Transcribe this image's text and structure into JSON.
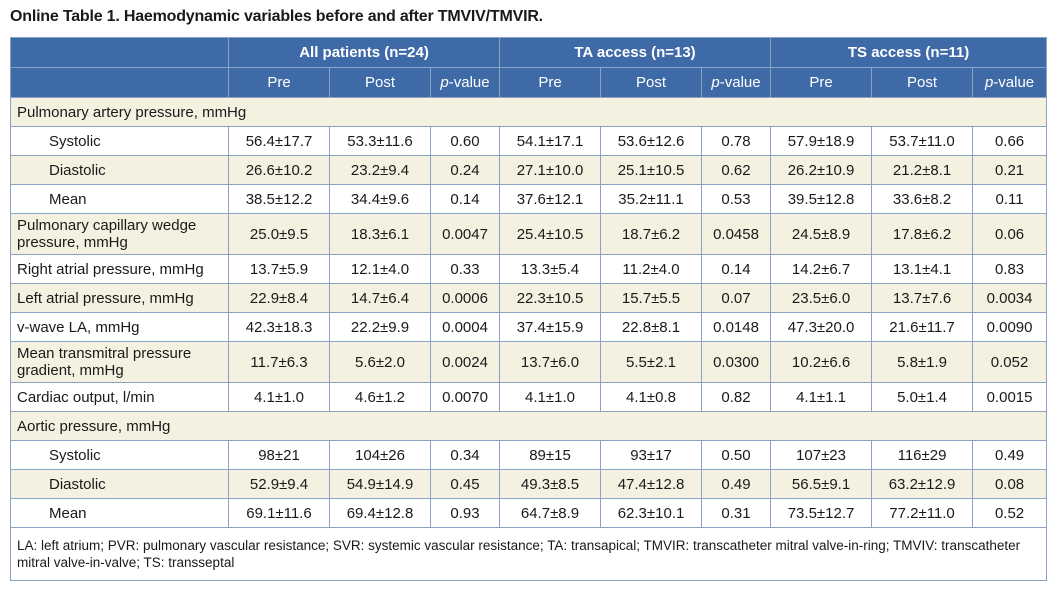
{
  "caption": "Online Table 1. Haemodynamic variables before and after TMVIV/TMVIR.",
  "groups": [
    "All patients (n=24)",
    "TA access (n=13)",
    "TS access (n=11)"
  ],
  "sub": {
    "pre": "Pre",
    "post": "Post",
    "p_italic": "p",
    "p_rest": "-value"
  },
  "rows": [
    {
      "type": "section",
      "label": "Pulmonary artery pressure, mmHg"
    },
    {
      "type": "indent",
      "label": "Systolic",
      "v": [
        "56.4±17.7",
        "53.3±11.6",
        "0.60",
        "54.1±17.1",
        "53.6±12.6",
        "0.78",
        "57.9±18.9",
        "53.7±11.0",
        "0.66"
      ]
    },
    {
      "type": "indent",
      "label": "Diastolic",
      "v": [
        "26.6±10.2",
        "23.2±9.4",
        "0.24",
        "27.1±10.0",
        "25.1±10.5",
        "0.62",
        "26.2±10.9",
        "21.2±8.1",
        "0.21"
      ]
    },
    {
      "type": "indent",
      "label": "Mean",
      "v": [
        "38.5±12.2",
        "34.4±9.6",
        "0.14",
        "37.6±12.1",
        "35.2±11.1",
        "0.53",
        "39.5±12.8",
        "33.6±8.2",
        "0.11"
      ]
    },
    {
      "type": "tall",
      "label": "Pulmonary capillary wedge pressure, mmHg",
      "v": [
        "25.0±9.5",
        "18.3±6.1",
        "0.0047",
        "25.4±10.5",
        "18.7±6.2",
        "0.0458",
        "24.5±8.9",
        "17.8±6.2",
        "0.06"
      ]
    },
    {
      "type": "row",
      "label": "Right atrial pressure, mmHg",
      "v": [
        "13.7±5.9",
        "12.1±4.0",
        "0.33",
        "13.3±5.4",
        "11.2±4.0",
        "0.14",
        "14.2±6.7",
        "13.1±4.1",
        "0.83"
      ]
    },
    {
      "type": "row",
      "label": "Left atrial pressure, mmHg",
      "v": [
        "22.9±8.4",
        "14.7±6.4",
        "0.0006",
        "22.3±10.5",
        "15.7±5.5",
        "0.07",
        "23.5±6.0",
        "13.7±7.6",
        "0.0034"
      ]
    },
    {
      "type": "row",
      "label": "v-wave LA, mmHg",
      "v": [
        "42.3±18.3",
        "22.2±9.9",
        "0.0004",
        "37.4±15.9",
        "22.8±8.1",
        "0.0148",
        "47.3±20.0",
        "21.6±11.7",
        "0.0090"
      ]
    },
    {
      "type": "tall",
      "label": "Mean transmitral pressure gradient, mmHg",
      "v": [
        "11.7±6.3",
        "5.6±2.0",
        "0.0024",
        "13.7±6.0",
        "5.5±2.1",
        "0.0300",
        "10.2±6.6",
        "5.8±1.9",
        "0.052"
      ]
    },
    {
      "type": "row",
      "label": "Cardiac output, l/min",
      "v": [
        "4.1±1.0",
        "4.6±1.2",
        "0.0070",
        "4.1±1.0",
        "4.1±0.8",
        "0.82",
        "4.1±1.1",
        "5.0±1.4",
        "0.0015"
      ]
    },
    {
      "type": "section",
      "label": "Aortic pressure, mmHg"
    },
    {
      "type": "indent",
      "label": "Systolic",
      "v": [
        "98±21",
        "104±26",
        "0.34",
        "89±15",
        "93±17",
        "0.50",
        "107±23",
        "116±29",
        "0.49"
      ]
    },
    {
      "type": "indent",
      "label": "Diastolic",
      "v": [
        "52.9±9.4",
        "54.9±14.9",
        "0.45",
        "49.3±8.5",
        "47.4±12.8",
        "0.49",
        "56.5±9.1",
        "63.2±12.9",
        "0.08"
      ]
    },
    {
      "type": "indent",
      "label": "Mean",
      "v": [
        "69.1±11.6",
        "69.4±12.8",
        "0.93",
        "64.7±8.9",
        "62.3±10.1",
        "0.31",
        "73.5±12.7",
        "77.2±11.0",
        "0.52"
      ]
    }
  ],
  "footnote": "LA: left atrium; PVR: pulmonary vascular resistance; SVR: systemic vascular resistance; TA: transapical; TMVIR: transcatheter mitral valve-in-ring; TMVIV: transcatheter mitral valve-in-valve; TS: transseptal",
  "colors": {
    "header": "#3f6aa8",
    "shade": "#f4f1e0",
    "border": "#8aa3c2"
  }
}
